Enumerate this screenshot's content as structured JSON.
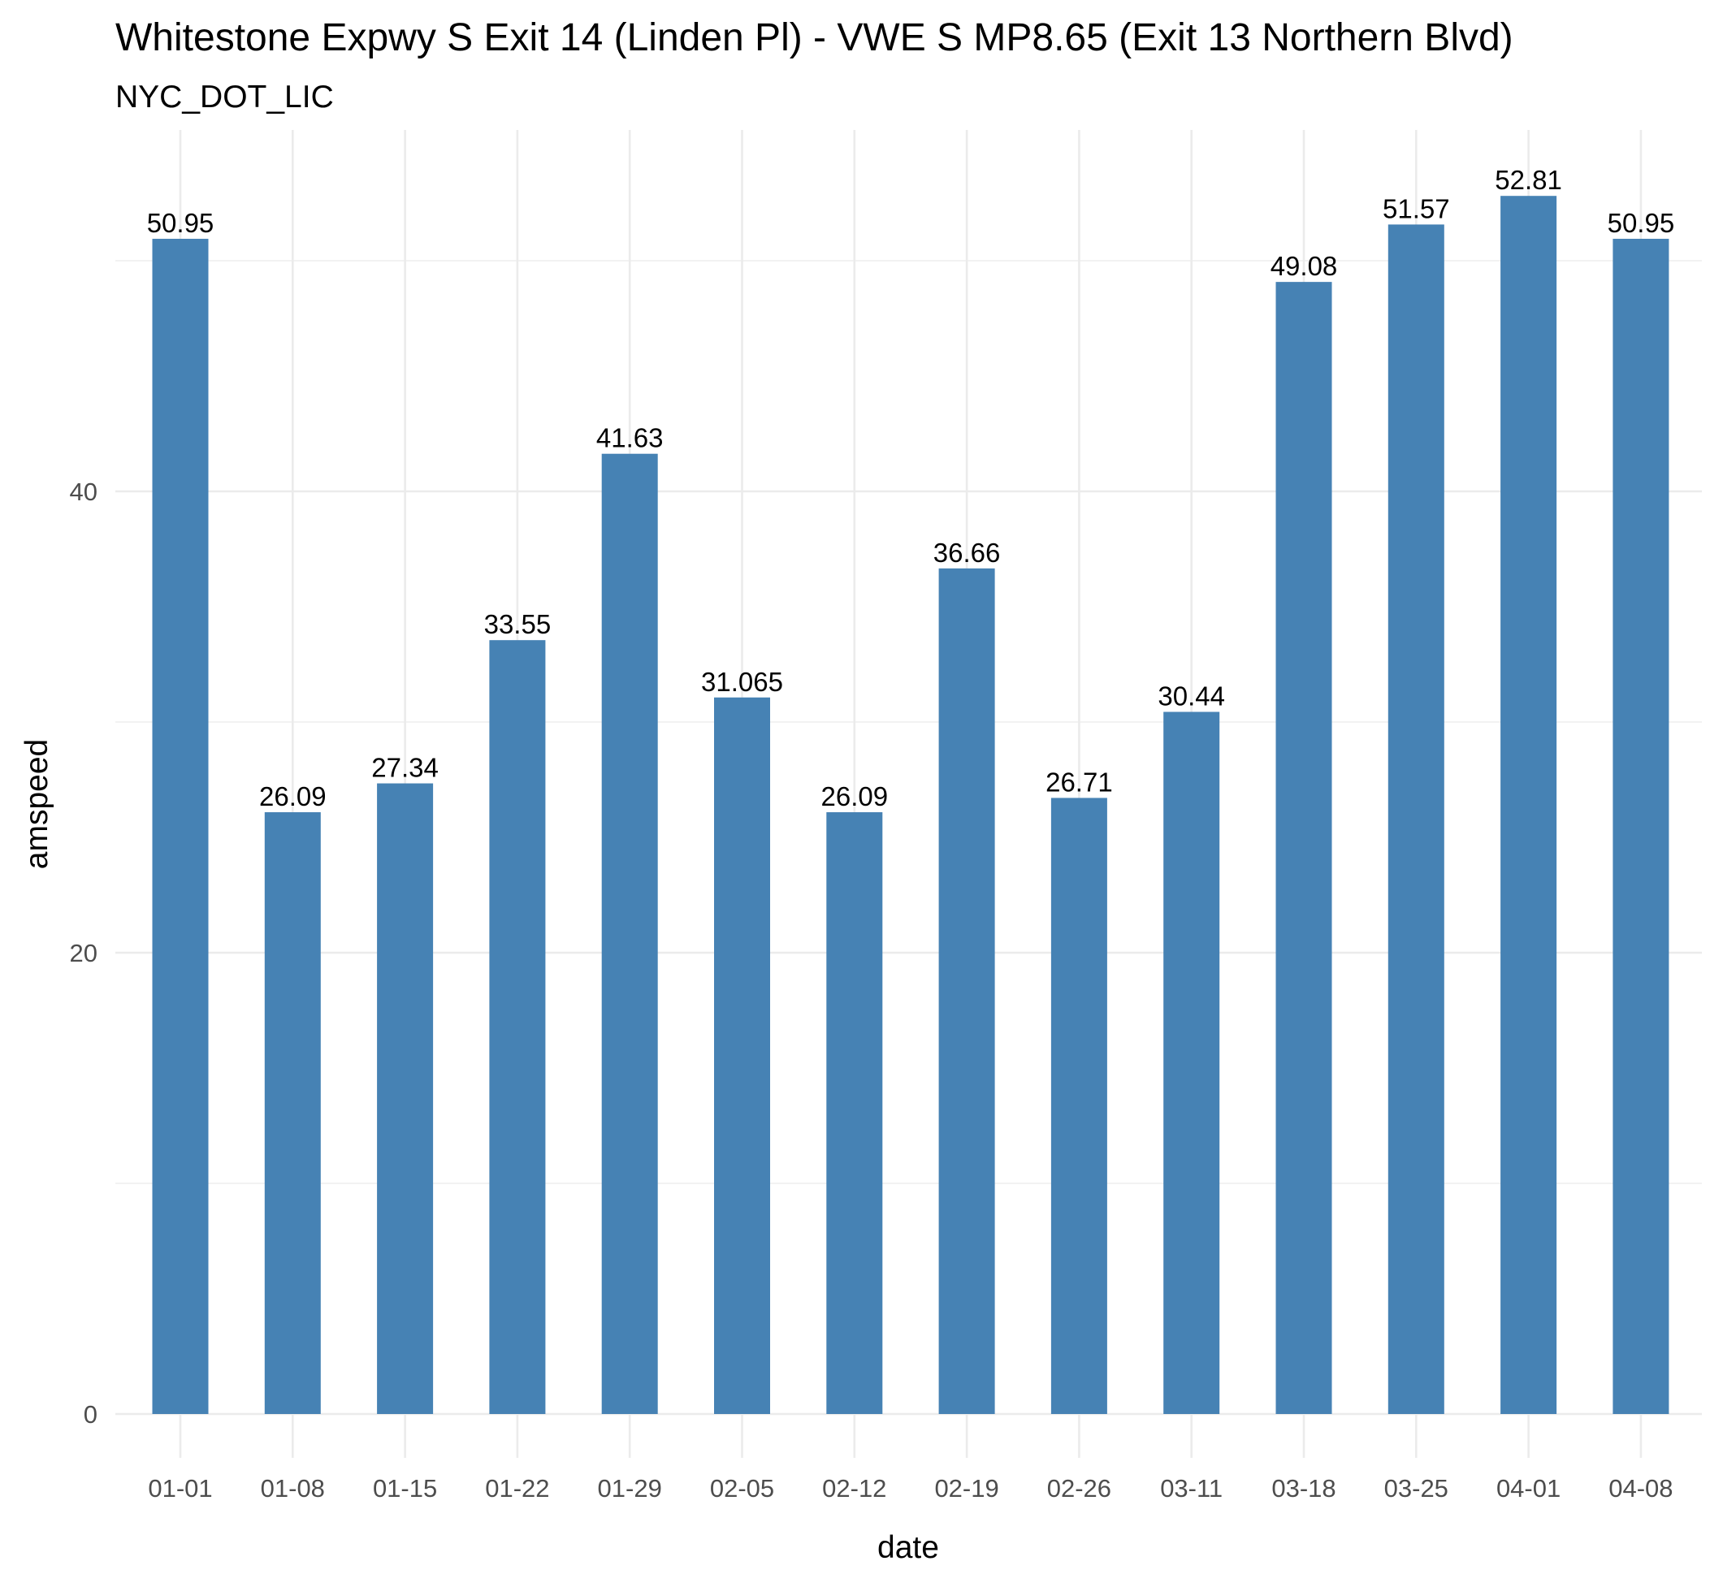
{
  "chart_data": {
    "type": "bar",
    "title": "Whitestone Expwy S Exit 14 (Linden Pl) - VWE S MP8.65 (Exit 13 Northern Blvd)",
    "subtitle": "NYC_DOT_LIC",
    "xlabel": "date",
    "ylabel": "amspeed",
    "categories": [
      "01-01",
      "01-08",
      "01-15",
      "01-22",
      "01-29",
      "02-05",
      "02-12",
      "02-19",
      "02-26",
      "03-11",
      "03-18",
      "03-25",
      "04-01",
      "04-08"
    ],
    "values": [
      50.95,
      26.09,
      27.34,
      33.55,
      41.63,
      31.065,
      26.09,
      36.66,
      26.71,
      30.44,
      49.08,
      51.57,
      52.81,
      50.95
    ],
    "value_labels": [
      "50.95",
      "26.09",
      "27.34",
      "33.55",
      "41.63",
      "31.065",
      "26.09",
      "36.66",
      "26.71",
      "30.44",
      "49.08",
      "51.57",
      "52.81",
      "50.95"
    ],
    "y_ticks": [
      0,
      20,
      40
    ],
    "y_tick_labels": [
      "0",
      "20",
      "40"
    ],
    "ylim": [
      0,
      55.5
    ],
    "grid": true,
    "legend": "none",
    "colors": {
      "bar": "#4682B4",
      "grid": "#EBEBEB",
      "tick_text": "#4D4D4D",
      "text": "#000000",
      "background": "#FFFFFF"
    }
  }
}
